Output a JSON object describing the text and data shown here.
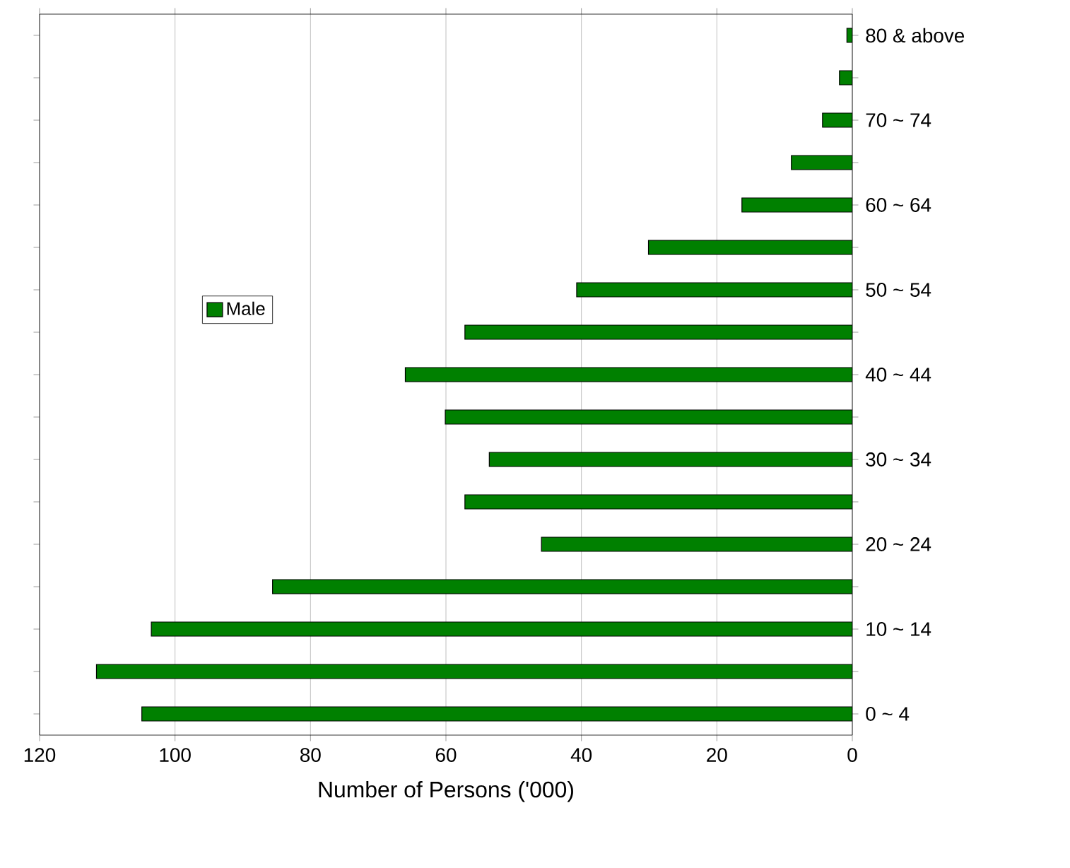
{
  "chart_data": {
    "type": "bar",
    "orientation": "horizontal",
    "xlabel": "Number of Persons ('000)",
    "categories": [
      "80 & above",
      null,
      "70 ~ 74",
      null,
      "60 ~ 64",
      null,
      "50 ~ 54",
      null,
      "40 ~ 44",
      null,
      "30 ~ 34",
      null,
      "20 ~ 24",
      null,
      "10 ~ 14",
      null,
      "0 ~ 4"
    ],
    "series": [
      {
        "name": "Male",
        "color": "#008000",
        "values": [
          0.8,
          1.9,
          4.4,
          9.0,
          16.3,
          30.1,
          40.7,
          57.2,
          66.0,
          60.1,
          53.6,
          57.2,
          45.9,
          85.6,
          103.5,
          111.6,
          104.9
        ]
      }
    ],
    "xlim": [
      120,
      0
    ],
    "xticks": [
      120,
      100,
      80,
      60,
      40,
      20,
      0
    ],
    "grid": "x",
    "legend": "left"
  }
}
